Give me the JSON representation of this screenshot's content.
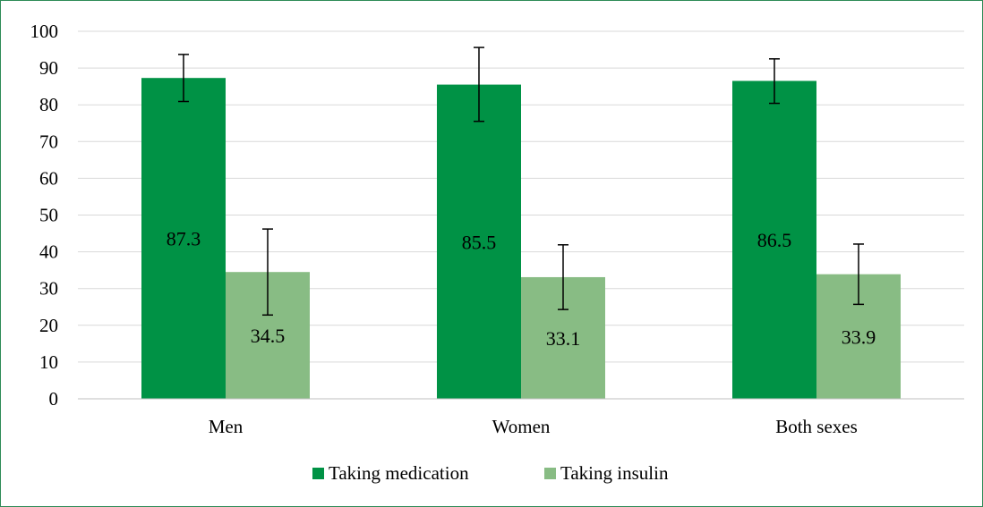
{
  "chart_data": {
    "type": "bar",
    "categories": [
      "Men",
      "Women",
      "Both sexes"
    ],
    "series": [
      {
        "name": "Taking medication",
        "color": "#009245",
        "values": [
          87.3,
          85.5,
          86.5
        ],
        "labels": [
          "87.3",
          "85.5",
          "86.5"
        ],
        "error_low": [
          80.9,
          75.5,
          80.4
        ],
        "error_high": [
          93.7,
          95.6,
          92.5
        ]
      },
      {
        "name": "Taking insulin",
        "color": "#88bc84",
        "values": [
          34.5,
          33.1,
          33.9
        ],
        "labels": [
          "34.5",
          "33.1",
          "33.9"
        ],
        "error_low": [
          22.8,
          24.3,
          25.7
        ],
        "error_high": [
          46.2,
          41.9,
          42.1
        ]
      }
    ],
    "ylim": [
      0,
      100
    ],
    "yticks": [
      "0",
      "10",
      "20",
      "30",
      "40",
      "50",
      "60",
      "70",
      "80",
      "90",
      "100"
    ],
    "grid": true,
    "legend_position": "bottom",
    "xlabel": "",
    "ylabel": "",
    "title": ""
  }
}
